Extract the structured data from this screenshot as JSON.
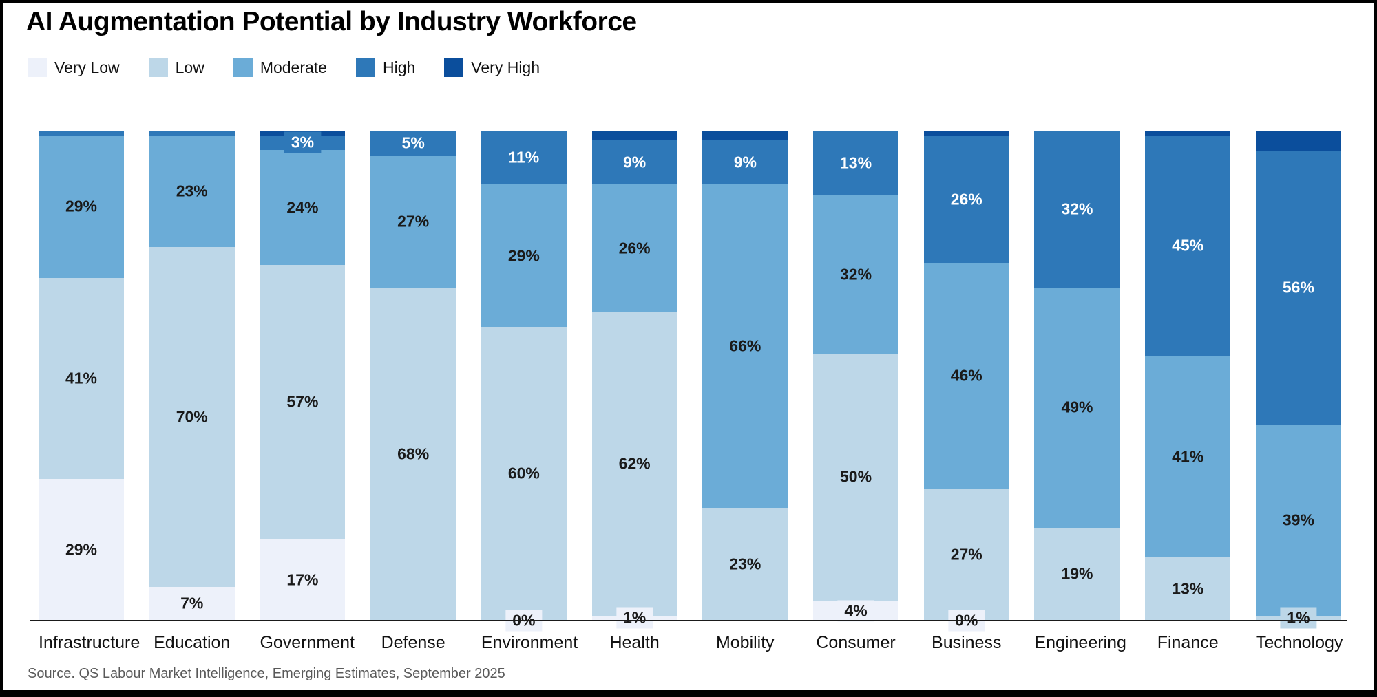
{
  "source_note": "Source. QS Labour Market Intelligence, Emerging Estimates, September 2025",
  "chart_data": {
    "type": "bar",
    "variant": "stacked-100-percent",
    "title": "AI Augmentation Potential by Industry Workforce",
    "xlabel": "",
    "ylabel": "",
    "ylim": [
      0,
      100
    ],
    "unit": "%",
    "grid": false,
    "legend_position": "top-left",
    "legend": [
      {
        "label": "Very Low",
        "color": "#EDF1FA",
        "text_color": "#1a1a1a"
      },
      {
        "label": "Low",
        "color": "#BDD7E8",
        "text_color": "#1a1a1a"
      },
      {
        "label": "Moderate",
        "color": "#6BACD7",
        "text_color": "#1a1a1a"
      },
      {
        "label": "High",
        "color": "#2E78B8",
        "text_color": "#ffffff"
      },
      {
        "label": "Very High",
        "color": "#0B4E9C",
        "text_color": "#ffffff"
      }
    ],
    "categories": [
      "Infrastructure",
      "Education",
      "Government",
      "Defense",
      "Environment",
      "Health",
      "Mobility",
      "Consumer",
      "Business",
      "Engineering",
      "Finance",
      "Technology"
    ],
    "bars": [
      {
        "category": "Infrastructure",
        "segments": [
          {
            "level": "Very Low",
            "value": 29,
            "label": "29%"
          },
          {
            "level": "Low",
            "value": 41,
            "label": "41%"
          },
          {
            "level": "Moderate",
            "value": 29,
            "label": "29%"
          },
          {
            "level": "High",
            "value": 1,
            "label": ""
          }
        ]
      },
      {
        "category": "Education",
        "segments": [
          {
            "level": "Very Low",
            "value": 7,
            "label": "7%"
          },
          {
            "level": "Low",
            "value": 70,
            "label": "70%"
          },
          {
            "level": "Moderate",
            "value": 23,
            "label": "23%"
          },
          {
            "level": "High",
            "value": 1,
            "label": ""
          }
        ]
      },
      {
        "category": "Government",
        "segments": [
          {
            "level": "Very Low",
            "value": 17,
            "label": "17%"
          },
          {
            "level": "Low",
            "value": 57,
            "label": "57%"
          },
          {
            "level": "Moderate",
            "value": 24,
            "label": "24%"
          },
          {
            "level": "High",
            "value": 3,
            "label": "3%"
          },
          {
            "level": "Very High",
            "value": 1,
            "label": ""
          }
        ]
      },
      {
        "category": "Defense",
        "segments": [
          {
            "level": "Low",
            "value": 68,
            "label": "68%"
          },
          {
            "level": "Moderate",
            "value": 27,
            "label": "27%"
          },
          {
            "level": "High",
            "value": 5,
            "label": "5%"
          }
        ]
      },
      {
        "category": "Environment",
        "segments": [
          {
            "level": "Very Low",
            "value": 0,
            "label": "0%"
          },
          {
            "level": "Low",
            "value": 60,
            "label": "60%"
          },
          {
            "level": "Moderate",
            "value": 29,
            "label": "29%"
          },
          {
            "level": "High",
            "value": 11,
            "label": "11%"
          }
        ]
      },
      {
        "category": "Health",
        "segments": [
          {
            "level": "Very Low",
            "value": 1,
            "label": "1%"
          },
          {
            "level": "Low",
            "value": 62,
            "label": "62%"
          },
          {
            "level": "Moderate",
            "value": 26,
            "label": "26%"
          },
          {
            "level": "High",
            "value": 9,
            "label": "9%"
          },
          {
            "level": "Very High",
            "value": 2,
            "label": ""
          }
        ]
      },
      {
        "category": "Mobility",
        "segments": [
          {
            "level": "Low",
            "value": 23,
            "label": "23%"
          },
          {
            "level": "Moderate",
            "value": 66,
            "label": "66%"
          },
          {
            "level": "High",
            "value": 9,
            "label": "9%"
          },
          {
            "level": "Very High",
            "value": 2,
            "label": ""
          }
        ]
      },
      {
        "category": "Consumer",
        "segments": [
          {
            "level": "Very Low",
            "value": 4,
            "label": "4%"
          },
          {
            "level": "Low",
            "value": 50,
            "label": "50%"
          },
          {
            "level": "Moderate",
            "value": 32,
            "label": "32%"
          },
          {
            "level": "High",
            "value": 13,
            "label": "13%"
          }
        ]
      },
      {
        "category": "Business",
        "segments": [
          {
            "level": "Very Low",
            "value": 0,
            "label": "0%"
          },
          {
            "level": "Low",
            "value": 27,
            "label": "27%"
          },
          {
            "level": "Moderate",
            "value": 46,
            "label": "46%"
          },
          {
            "level": "High",
            "value": 26,
            "label": "26%"
          },
          {
            "level": "Very High",
            "value": 1,
            "label": ""
          }
        ]
      },
      {
        "category": "Engineering",
        "segments": [
          {
            "level": "Low",
            "value": 19,
            "label": "19%"
          },
          {
            "level": "Moderate",
            "value": 49,
            "label": "49%"
          },
          {
            "level": "High",
            "value": 32,
            "label": "32%"
          }
        ]
      },
      {
        "category": "Finance",
        "segments": [
          {
            "level": "Low",
            "value": 13,
            "label": "13%"
          },
          {
            "level": "Moderate",
            "value": 41,
            "label": "41%"
          },
          {
            "level": "High",
            "value": 45,
            "label": "45%"
          },
          {
            "level": "Very High",
            "value": 1,
            "label": ""
          }
        ]
      },
      {
        "category": "Technology",
        "segments": [
          {
            "level": "Low",
            "value": 1,
            "label": "1%"
          },
          {
            "level": "Moderate",
            "value": 39,
            "label": "39%"
          },
          {
            "level": "High",
            "value": 56,
            "label": "56%"
          },
          {
            "level": "Very High",
            "value": 4,
            "label": ""
          }
        ]
      }
    ]
  }
}
